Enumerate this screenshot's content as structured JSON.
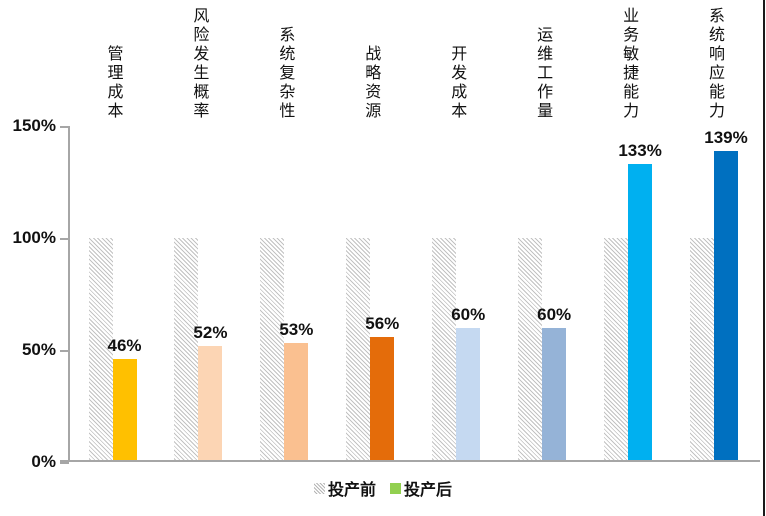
{
  "chart_data": {
    "type": "bar",
    "categories": [
      "管理成本",
      "风险发生概率",
      "系统复杂性",
      "战略资源",
      "开发成本",
      "运维工作量",
      "业务敏捷能力",
      "系统响应能力"
    ],
    "series": [
      {
        "name": "投产前",
        "values": [
          100,
          100,
          100,
          100,
          100,
          100,
          100,
          100
        ],
        "style": "hatched",
        "hatch_line_color": "#c2c2c2",
        "legend_color": "#c2c2c2"
      },
      {
        "name": "投产后",
        "values": [
          46,
          52,
          53,
          56,
          60,
          60,
          133,
          139
        ],
        "colors": [
          "#FFC000",
          "#FCD5B4",
          "#FAC090",
          "#E46C0A",
          "#C5D9F1",
          "#95B3D7",
          "#00B0F0",
          "#0070C0"
        ],
        "legend_color": "#92D050"
      }
    ],
    "data_labels": [
      "46%",
      "52%",
      "53%",
      "56%",
      "60%",
      "60%",
      "133%",
      "139%"
    ],
    "y_ticks": [
      {
        "label": "0%",
        "value": 0
      },
      {
        "label": "50%",
        "value": 50
      },
      {
        "label": "100%",
        "value": 100
      },
      {
        "label": "150%",
        "value": 150
      }
    ],
    "ylim": [
      0,
      150
    ],
    "title": "",
    "xlabel": "",
    "ylabel": "",
    "grid": false,
    "legend_position": "bottom"
  },
  "colors": {
    "axis": "#a6a6a6",
    "text": "#111111",
    "right_border": "#1a1a1a",
    "background": "#ffffff"
  }
}
